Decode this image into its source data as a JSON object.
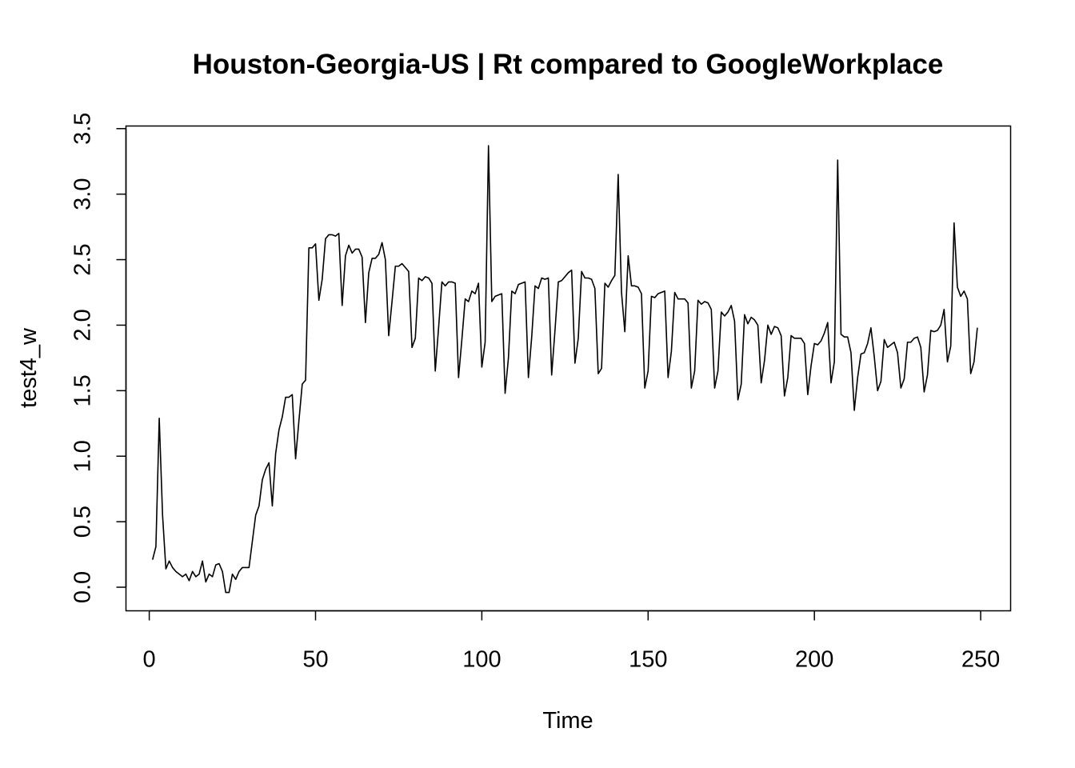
{
  "chart_data": {
    "type": "line",
    "title": "Houston-Georgia-US | Rt compared to GoogleWorkplace",
    "xlabel": "Time",
    "ylabel": "test4_w",
    "xlim": [
      -7,
      259
    ],
    "ylim": [
      -0.18,
      3.52
    ],
    "x_ticks": [
      0,
      50,
      100,
      150,
      200,
      250
    ],
    "y_ticks": [
      0.0,
      0.5,
      1.0,
      1.5,
      2.0,
      2.5,
      3.0,
      3.5
    ],
    "x_tick_labels": [
      "0",
      "50",
      "100",
      "150",
      "200",
      "250"
    ],
    "y_tick_labels": [
      "0.0",
      "0.5",
      "1.0",
      "1.5",
      "2.0",
      "2.5",
      "3.0",
      "3.5"
    ],
    "grid": false,
    "legend": "none",
    "line_color": "#000000",
    "series": [
      {
        "x_start": 1,
        "x_step": 1,
        "values": [
          0.21,
          0.31,
          1.29,
          0.55,
          0.14,
          0.2,
          0.15,
          0.12,
          0.1,
          0.08,
          0.1,
          0.05,
          0.12,
          0.08,
          0.1,
          0.2,
          0.04,
          0.1,
          0.08,
          0.17,
          0.18,
          0.12,
          -0.04,
          -0.04,
          0.1,
          0.06,
          0.12,
          0.15,
          0.15,
          0.15,
          0.35,
          0.55,
          0.62,
          0.82,
          0.9,
          0.95,
          0.62,
          1.02,
          1.2,
          1.3,
          1.45,
          1.45,
          1.47,
          0.98,
          1.27,
          1.55,
          1.58,
          2.59,
          2.59,
          2.62,
          2.19,
          2.35,
          2.66,
          2.69,
          2.69,
          2.68,
          2.7,
          2.15,
          2.53,
          2.61,
          2.55,
          2.58,
          2.58,
          2.52,
          2.02,
          2.4,
          2.51,
          2.51,
          2.54,
          2.63,
          2.5,
          1.92,
          2.18,
          2.45,
          2.45,
          2.47,
          2.44,
          2.41,
          1.83,
          1.9,
          2.36,
          2.34,
          2.37,
          2.36,
          2.32,
          1.65,
          1.98,
          2.33,
          2.3,
          2.33,
          2.33,
          2.32,
          1.6,
          1.89,
          2.2,
          2.18,
          2.26,
          2.24,
          2.32,
          1.68,
          1.87,
          3.37,
          2.18,
          2.22,
          2.23,
          2.24,
          1.48,
          1.75,
          2.26,
          2.24,
          2.31,
          2.32,
          2.33,
          1.6,
          1.91,
          2.3,
          2.28,
          2.36,
          2.35,
          2.36,
          1.62,
          1.96,
          2.33,
          2.34,
          2.37,
          2.4,
          2.42,
          1.71,
          1.9,
          2.41,
          2.36,
          2.36,
          2.35,
          2.28,
          1.63,
          1.67,
          2.32,
          2.29,
          2.34,
          2.38,
          3.15,
          2.25,
          1.95,
          2.53,
          2.3,
          2.3,
          2.29,
          2.24,
          1.52,
          1.65,
          2.22,
          2.21,
          2.24,
          2.25,
          2.26,
          1.6,
          1.8,
          2.25,
          2.2,
          2.2,
          2.2,
          2.17,
          1.52,
          1.65,
          2.19,
          2.16,
          2.18,
          2.17,
          2.12,
          1.52,
          1.65,
          2.1,
          2.07,
          2.1,
          2.15,
          2.03,
          1.43,
          1.55,
          2.08,
          2.01,
          2.06,
          2.04,
          2.0,
          1.56,
          1.73,
          2.0,
          1.93,
          1.99,
          1.98,
          1.92,
          1.46,
          1.6,
          1.92,
          1.9,
          1.9,
          1.9,
          1.86,
          1.47,
          1.69,
          1.86,
          1.85,
          1.88,
          1.94,
          2.02,
          1.56,
          1.72,
          3.26,
          1.93,
          1.91,
          1.91,
          1.79,
          1.35,
          1.6,
          1.78,
          1.79,
          1.86,
          1.98,
          1.76,
          1.5,
          1.57,
          1.89,
          1.83,
          1.85,
          1.87,
          1.79,
          1.52,
          1.59,
          1.87,
          1.87,
          1.9,
          1.91,
          1.83,
          1.49,
          1.62,
          1.96,
          1.95,
          1.96,
          2.0,
          2.12,
          1.72,
          1.84,
          2.78,
          2.29,
          2.22,
          2.26,
          2.2,
          1.63,
          1.72,
          1.98
        ]
      }
    ]
  }
}
